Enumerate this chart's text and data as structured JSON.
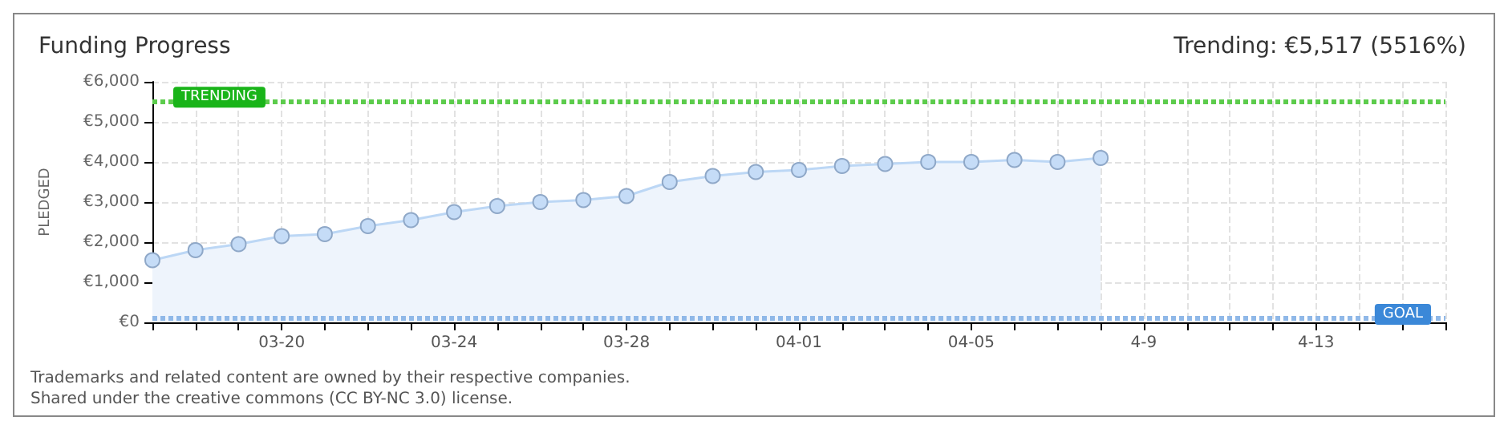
{
  "chart_data": {
    "type": "area",
    "title": "Funding Progress",
    "subtitle": "Trending: €5,517 (5516%)",
    "ylabel": "PLEDGED",
    "categories": [
      null,
      null,
      null,
      "03-20",
      null,
      null,
      null,
      "03-24",
      null,
      null,
      null,
      "03-28",
      null,
      null,
      null,
      "04-01",
      null,
      null,
      null,
      "04-05",
      null,
      null,
      null,
      "4-9",
      null,
      null,
      null,
      "4-13",
      null,
      null,
      null
    ],
    "series": [
      {
        "color": "#bcd7f5",
        "values": [
          1550,
          1800,
          1950,
          2150,
          2200,
          2400,
          2550,
          2750,
          2900,
          3000,
          3050,
          3150,
          3500,
          3650,
          3750,
          3800,
          3900,
          3950,
          4000,
          4000,
          4050,
          4000,
          4100,
          null,
          null,
          null,
          null,
          null,
          null,
          null,
          null
        ]
      }
    ],
    "ylim": [
      0,
      6000
    ],
    "yticks": [
      {
        "value": 0,
        "label": "€0"
      },
      {
        "value": 1000,
        "label": "€1,000"
      },
      {
        "value": 2000,
        "label": "€2,000"
      },
      {
        "value": 3000,
        "label": "€3,000"
      },
      {
        "value": 4000,
        "label": "€4,000"
      },
      {
        "value": 5000,
        "label": "€5,000"
      },
      {
        "value": 6000,
        "label": "€6,000"
      }
    ],
    "ref_lines": [
      {
        "axis": "y",
        "value": 5517,
        "label": "TRENDING",
        "color": "#5ccc4c",
        "line_style": "dotted"
      },
      {
        "axis": "y",
        "value": 100,
        "label": "GOAL",
        "color": "#8fb8e8",
        "line_style": "dotted"
      }
    ],
    "annotations": [
      "Trademarks and related content are owned by their respective companies.",
      "Shared under the creative commons (CC BY-NC 3.0) license."
    ],
    "grid": true,
    "marker": "circle"
  }
}
